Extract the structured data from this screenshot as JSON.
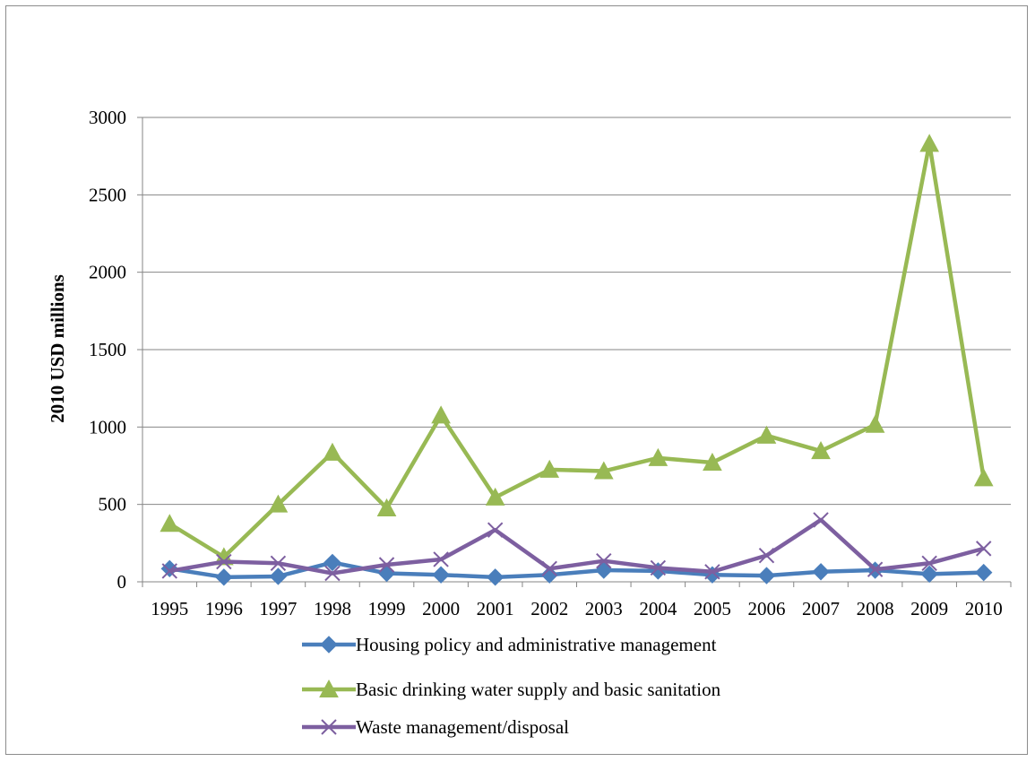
{
  "chart_data": {
    "type": "line",
    "title": "",
    "xlabel": "",
    "ylabel": "2010 USD millions",
    "ylim": [
      0,
      3000
    ],
    "yticks": [
      "0",
      "500",
      "1000",
      "1500",
      "2000",
      "2500",
      "3000"
    ],
    "ytick_values": [
      0,
      500,
      1000,
      1500,
      2000,
      2500,
      3000
    ],
    "categories": [
      "1995",
      "1996",
      "1997",
      "1998",
      "1999",
      "2000",
      "2001",
      "2002",
      "2003",
      "2004",
      "2005",
      "2006",
      "2007",
      "2008",
      "2009",
      "2010"
    ],
    "grid": true,
    "legend_position": "bottom",
    "series": [
      {
        "name": "Housing policy and administrative management",
        "color": "#4a7ebb",
        "marker": "diamond",
        "values": [
          85,
          30,
          35,
          125,
          55,
          45,
          30,
          45,
          75,
          70,
          45,
          40,
          65,
          75,
          50,
          60
        ]
      },
      {
        "name": "Basic drinking water supply and basic sanitation",
        "color": "#98b954",
        "marker": "triangle",
        "values": [
          375,
          160,
          500,
          835,
          475,
          1075,
          545,
          725,
          715,
          800,
          770,
          945,
          845,
          1015,
          2830,
          670
        ]
      },
      {
        "name": "Waste management/disposal",
        "color": "#7d5fa0",
        "marker": "x",
        "values": [
          70,
          130,
          120,
          55,
          110,
          145,
          335,
          85,
          135,
          90,
          65,
          170,
          400,
          80,
          120,
          215
        ]
      }
    ]
  }
}
